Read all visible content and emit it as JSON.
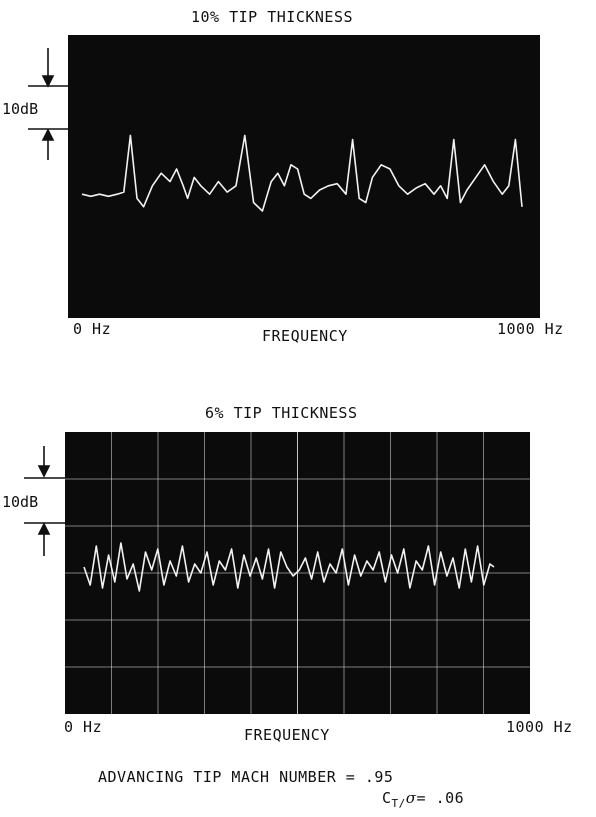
{
  "figure": {
    "footer_line1": "ADVANCING TIP MACH NUMBER = .95",
    "footer_ct_main": "C",
    "footer_ct_sub": "T/",
    "footer_ct_sigma": "σ",
    "footer_ct_value": "= .06"
  },
  "chart_data": [
    {
      "type": "line",
      "title": "10% TIP THICKNESS",
      "xlabel": "FREQUENCY",
      "x_tick_left": "0 Hz",
      "x_tick_right": "1000 Hz",
      "xlim": [
        0,
        1000
      ],
      "scale_label": "10dB",
      "grid": false,
      "colors": {
        "screen": "#0b0b0b",
        "trace": "#f2f2f2"
      },
      "series": [
        {
          "x": [
            0,
            20,
            40,
            60,
            80,
            95,
            110,
            125,
            140,
            160,
            180,
            200,
            215,
            230,
            240,
            255,
            270,
            290,
            310,
            330,
            350,
            370,
            390,
            410,
            430,
            445,
            460,
            475,
            490,
            505,
            520,
            540,
            560,
            580,
            600,
            615,
            630,
            645,
            660,
            680,
            700,
            720,
            740,
            760,
            780,
            800,
            815,
            830,
            845,
            860,
            875,
            895,
            915,
            935,
            955,
            970,
            985,
            1000
          ],
          "y": [
            -1,
            -1.5,
            -1,
            -1.5,
            -1,
            -0.5,
            13,
            -2,
            -4,
            1,
            4,
            2,
            5,
            1,
            -2,
            3,
            1,
            -1,
            2,
            -0.5,
            1,
            13,
            -3,
            -5,
            2,
            4,
            1,
            6,
            5,
            -1,
            -2,
            0,
            1,
            1.5,
            -1,
            12,
            -2,
            -3,
            3,
            6,
            5,
            1,
            -1,
            0.5,
            1.5,
            -1,
            1,
            -2,
            12,
            -3,
            0,
            3,
            6,
            2,
            -1,
            1,
            12,
            -4
          ]
        }
      ]
    },
    {
      "type": "line",
      "title": "6% TIP THICKNESS",
      "xlabel": "FREQUENCY",
      "x_tick_left": "0 Hz",
      "x_tick_right": "1000 Hz",
      "xlim": [
        0,
        1000
      ],
      "scale_label": "10dB",
      "grid": true,
      "colors": {
        "screen": "#0b0b0b",
        "trace": "#f2f2f2",
        "grid": "#d9d9d9"
      },
      "series": [
        {
          "x": [
            0,
            15,
            30,
            45,
            60,
            75,
            90,
            105,
            120,
            135,
            150,
            165,
            180,
            195,
            210,
            225,
            240,
            255,
            270,
            285,
            300,
            315,
            330,
            345,
            360,
            375,
            390,
            405,
            420,
            435,
            450,
            465,
            480,
            495,
            510,
            525,
            540,
            555,
            570,
            585,
            600,
            615,
            630,
            645,
            660,
            675,
            690,
            705,
            720,
            735,
            750,
            765,
            780,
            795,
            810,
            825,
            840,
            855,
            870,
            885,
            900,
            915,
            930,
            945,
            960,
            975,
            990,
            1000
          ],
          "y": [
            1,
            -5,
            8,
            -6,
            5,
            -4,
            9,
            -3,
            2,
            -7,
            6,
            0,
            7,
            -5,
            3,
            -2,
            8,
            -4,
            2,
            -1,
            6,
            -5,
            3,
            0,
            7,
            -6,
            5,
            -2,
            4,
            -3,
            7,
            -6,
            6,
            1,
            -2,
            0,
            4,
            -3,
            6,
            -4,
            2,
            -1,
            7,
            -5,
            5,
            -2,
            3,
            0,
            6,
            -4,
            5,
            -1,
            7,
            -6,
            3,
            0,
            8,
            -5,
            6,
            -2,
            4,
            -6,
            7,
            -4,
            8,
            -5,
            2,
            1
          ]
        }
      ]
    }
  ]
}
